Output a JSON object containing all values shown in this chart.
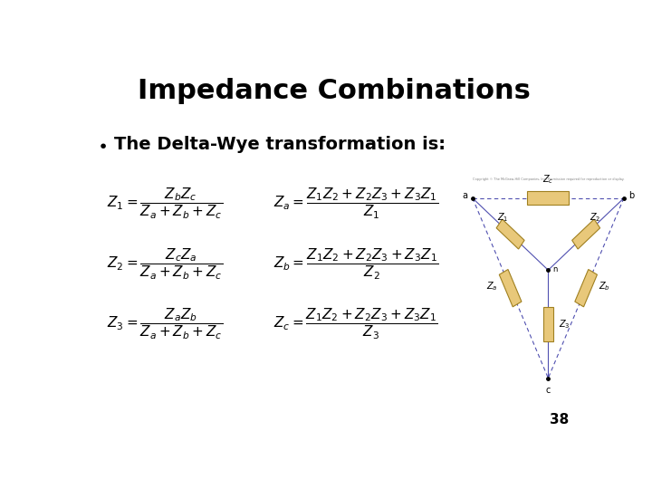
{
  "title": "Impedance Combinations",
  "bullet": "The Delta-Wye transformation is:",
  "page_number": "38",
  "background_color": "#ffffff",
  "title_fontsize": 22,
  "bullet_fontsize": 14,
  "eq_fontsize": 11,
  "page_num_fontsize": 11
}
